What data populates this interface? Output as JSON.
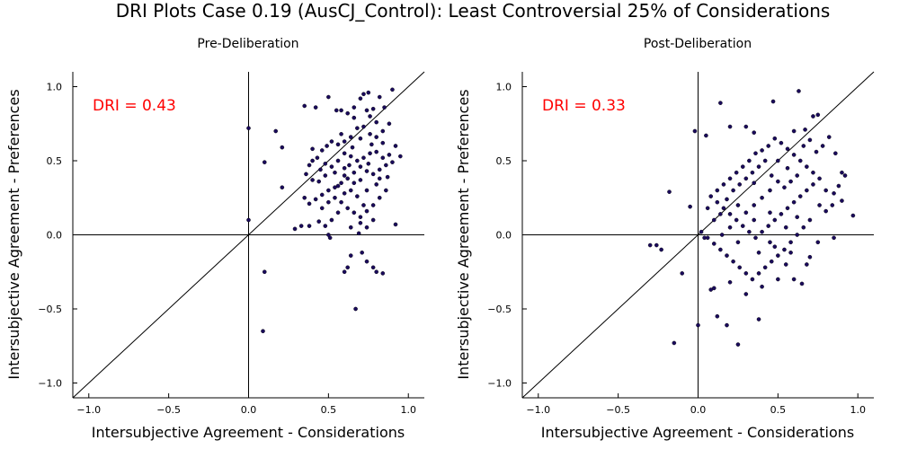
{
  "figure": {
    "title": "DRI Plots Case 0.19 (AusCJ_Control): Least Controversial 25% of Considerations"
  },
  "chart_data": [
    {
      "type": "scatter",
      "title": "Pre-Deliberation",
      "xlabel": "Intersubjective Agreement - Considerations",
      "ylabel": "Intersubjective Agreement - Preferences",
      "annotation": "DRI = 0.43",
      "annotation_color": "#ff0000",
      "xlim": [
        -1.1,
        1.1
      ],
      "ylim": [
        -1.1,
        1.1
      ],
      "xticks": [
        -1.0,
        -0.5,
        0.0,
        0.5,
        1.0
      ],
      "yticks": [
        -1.0,
        -0.5,
        0.0,
        0.5,
        1.0
      ],
      "xtick_labels": [
        "−1.0",
        "−0.5",
        "0.0",
        "0.5",
        "1.0"
      ],
      "ytick_labels": [
        "−1.0",
        "−0.5",
        "0.0",
        "0.5",
        "1.0"
      ],
      "grid": false,
      "reference_lines": [
        "x=0",
        "y=0",
        "y=x"
      ],
      "marker_color": "#1a0a5c",
      "points": [
        [
          0.0,
          0.72
        ],
        [
          0.0,
          0.1
        ],
        [
          0.1,
          0.49
        ],
        [
          0.17,
          0.7
        ],
        [
          0.21,
          0.59
        ],
        [
          0.21,
          0.32
        ],
        [
          0.29,
          0.04
        ],
        [
          0.1,
          -0.25
        ],
        [
          0.09,
          -0.65
        ],
        [
          0.35,
          0.87
        ],
        [
          0.42,
          0.86
        ],
        [
          0.5,
          0.93
        ],
        [
          0.55,
          0.84
        ],
        [
          0.58,
          0.84
        ],
        [
          0.62,
          0.82
        ],
        [
          0.66,
          0.79
        ],
        [
          0.7,
          0.92
        ],
        [
          0.72,
          0.95
        ],
        [
          0.75,
          0.96
        ],
        [
          0.78,
          0.85
        ],
        [
          0.82,
          0.93
        ],
        [
          0.85,
          0.86
        ],
        [
          0.9,
          0.98
        ],
        [
          0.88,
          0.75
        ],
        [
          0.84,
          0.7
        ],
        [
          0.8,
          0.66
        ],
        [
          0.76,
          0.68
        ],
        [
          0.72,
          0.73
        ],
        [
          0.68,
          0.72
        ],
        [
          0.64,
          0.66
        ],
        [
          0.6,
          0.63
        ],
        [
          0.56,
          0.61
        ],
        [
          0.52,
          0.63
        ],
        [
          0.49,
          0.6
        ],
        [
          0.46,
          0.57
        ],
        [
          0.43,
          0.52
        ],
        [
          0.4,
          0.5
        ],
        [
          0.38,
          0.47
        ],
        [
          0.36,
          0.41
        ],
        [
          0.4,
          0.37
        ],
        [
          0.44,
          0.36
        ],
        [
          0.48,
          0.4
        ],
        [
          0.52,
          0.46
        ],
        [
          0.56,
          0.5
        ],
        [
          0.6,
          0.55
        ],
        [
          0.64,
          0.53
        ],
        [
          0.68,
          0.5
        ],
        [
          0.72,
          0.52
        ],
        [
          0.76,
          0.55
        ],
        [
          0.8,
          0.56
        ],
        [
          0.84,
          0.52
        ],
        [
          0.88,
          0.54
        ],
        [
          0.92,
          0.6
        ],
        [
          0.95,
          0.53
        ],
        [
          0.9,
          0.49
        ],
        [
          0.86,
          0.47
        ],
        [
          0.82,
          0.44
        ],
        [
          0.78,
          0.41
        ],
        [
          0.74,
          0.43
        ],
        [
          0.7,
          0.46
        ],
        [
          0.66,
          0.42
        ],
        [
          0.62,
          0.38
        ],
        [
          0.58,
          0.35
        ],
        [
          0.54,
          0.32
        ],
        [
          0.5,
          0.3
        ],
        [
          0.46,
          0.27
        ],
        [
          0.42,
          0.24
        ],
        [
          0.38,
          0.21
        ],
        [
          0.35,
          0.25
        ],
        [
          0.46,
          0.18
        ],
        [
          0.5,
          0.22
        ],
        [
          0.54,
          0.25
        ],
        [
          0.58,
          0.22
        ],
        [
          0.62,
          0.18
        ],
        [
          0.66,
          0.15
        ],
        [
          0.7,
          0.12
        ],
        [
          0.74,
          0.16
        ],
        [
          0.78,
          0.2
        ],
        [
          0.82,
          0.25
        ],
        [
          0.86,
          0.3
        ],
        [
          0.8,
          0.34
        ],
        [
          0.74,
          0.3
        ],
        [
          0.68,
          0.26
        ],
        [
          0.64,
          0.3
        ],
        [
          0.6,
          0.28
        ],
        [
          0.56,
          0.15
        ],
        [
          0.52,
          0.1
        ],
        [
          0.48,
          0.06
        ],
        [
          0.44,
          0.09
        ],
        [
          0.64,
          0.05
        ],
        [
          0.7,
          0.08
        ],
        [
          0.74,
          0.05
        ],
        [
          0.78,
          0.1
        ],
        [
          0.72,
          0.2
        ],
        [
          0.66,
          0.35
        ],
        [
          0.7,
          0.37
        ],
        [
          0.6,
          0.45
        ],
        [
          0.54,
          0.42
        ],
        [
          0.48,
          0.48
        ],
        [
          0.58,
          0.68
        ],
        [
          0.7,
          0.65
        ],
        [
          0.76,
          0.8
        ],
        [
          0.8,
          0.76
        ],
        [
          0.66,
          0.86
        ],
        [
          0.74,
          0.84
        ],
        [
          0.5,
          0.0
        ],
        [
          0.51,
          -0.02
        ],
        [
          0.69,
          0.01
        ],
        [
          0.71,
          -0.12
        ],
        [
          0.64,
          -0.14
        ],
        [
          0.74,
          -0.18
        ],
        [
          0.78,
          -0.22
        ],
        [
          0.62,
          -0.22
        ],
        [
          0.6,
          -0.25
        ],
        [
          0.8,
          -0.25
        ],
        [
          0.84,
          -0.26
        ],
        [
          0.67,
          -0.5
        ],
        [
          0.92,
          0.07
        ],
        [
          0.33,
          0.06
        ],
        [
          0.38,
          0.06
        ],
        [
          0.56,
          0.33
        ],
        [
          0.65,
          0.59
        ],
        [
          0.77,
          0.61
        ],
        [
          0.84,
          0.62
        ],
        [
          0.45,
          0.44
        ],
        [
          0.4,
          0.58
        ],
        [
          0.6,
          0.4
        ],
        [
          0.63,
          0.47
        ],
        [
          0.75,
          0.48
        ],
        [
          0.87,
          0.39
        ],
        [
          0.82,
          0.38
        ]
      ]
    },
    {
      "type": "scatter",
      "title": "Post-Deliberation",
      "xlabel": "Intersubjective Agreement - Considerations",
      "ylabel": "Intersubjective Agreement - Preferences",
      "annotation": "DRI = 0.33",
      "annotation_color": "#ff0000",
      "xlim": [
        -1.1,
        1.1
      ],
      "ylim": [
        -1.1,
        1.1
      ],
      "xticks": [
        -1.0,
        -0.5,
        0.0,
        0.5,
        1.0
      ],
      "yticks": [
        -1.0,
        -0.5,
        0.0,
        0.5,
        1.0
      ],
      "xtick_labels": [
        "−1.0",
        "−0.5",
        "0.0",
        "0.5",
        "1.0"
      ],
      "ytick_labels": [
        "−1.0",
        "−0.5",
        "0.0",
        "0.5",
        "1.0"
      ],
      "grid": false,
      "reference_lines": [
        "x=0",
        "y=0",
        "y=x"
      ],
      "marker_color": "#1a0a5c",
      "points": [
        [
          -0.3,
          -0.07
        ],
        [
          -0.26,
          -0.07
        ],
        [
          -0.23,
          -0.1
        ],
        [
          -0.18,
          0.29
        ],
        [
          -0.1,
          -0.26
        ],
        [
          -0.15,
          -0.73
        ],
        [
          -0.05,
          0.19
        ],
        [
          -0.02,
          0.7
        ],
        [
          0.0,
          -0.61
        ],
        [
          0.02,
          0.02
        ],
        [
          0.04,
          -0.02
        ],
        [
          0.05,
          0.67
        ],
        [
          0.06,
          0.18
        ],
        [
          0.08,
          -0.37
        ],
        [
          0.1,
          -0.36
        ],
        [
          0.12,
          -0.55
        ],
        [
          0.14,
          0.89
        ],
        [
          0.18,
          -0.61
        ],
        [
          0.25,
          -0.74
        ],
        [
          0.2,
          0.73
        ],
        [
          0.3,
          0.73
        ],
        [
          0.35,
          0.69
        ],
        [
          0.38,
          -0.57
        ],
        [
          0.47,
          0.9
        ],
        [
          0.63,
          0.97
        ],
        [
          0.67,
          0.71
        ],
        [
          0.72,
          0.8
        ],
        [
          0.75,
          0.81
        ],
        [
          0.97,
          0.13
        ],
        [
          0.92,
          0.4
        ],
        [
          0.88,
          0.33
        ],
        [
          0.85,
          0.28
        ],
        [
          0.9,
          0.23
        ],
        [
          0.8,
          0.3
        ],
        [
          0.76,
          0.38
        ],
        [
          0.72,
          0.42
        ],
        [
          0.68,
          0.46
        ],
        [
          0.64,
          0.5
        ],
        [
          0.6,
          0.54
        ],
        [
          0.56,
          0.58
        ],
        [
          0.52,
          0.62
        ],
        [
          0.48,
          0.65
        ],
        [
          0.44,
          0.6
        ],
        [
          0.4,
          0.57
        ],
        [
          0.36,
          0.55
        ],
        [
          0.32,
          0.5
        ],
        [
          0.28,
          0.46
        ],
        [
          0.24,
          0.42
        ],
        [
          0.2,
          0.38
        ],
        [
          0.16,
          0.34
        ],
        [
          0.12,
          0.3
        ],
        [
          0.08,
          0.26
        ],
        [
          0.12,
          0.22
        ],
        [
          0.16,
          0.18
        ],
        [
          0.2,
          0.14
        ],
        [
          0.24,
          0.1
        ],
        [
          0.28,
          0.06
        ],
        [
          0.32,
          0.02
        ],
        [
          0.36,
          -0.02
        ],
        [
          0.4,
          0.02
        ],
        [
          0.44,
          0.06
        ],
        [
          0.48,
          0.1
        ],
        [
          0.52,
          0.14
        ],
        [
          0.56,
          0.18
        ],
        [
          0.6,
          0.22
        ],
        [
          0.64,
          0.26
        ],
        [
          0.68,
          0.3
        ],
        [
          0.72,
          0.34
        ],
        [
          0.76,
          0.2
        ],
        [
          0.8,
          0.16
        ],
        [
          0.84,
          0.2
        ],
        [
          0.7,
          0.1
        ],
        [
          0.66,
          0.05
        ],
        [
          0.62,
          0.0
        ],
        [
          0.58,
          -0.05
        ],
        [
          0.54,
          -0.1
        ],
        [
          0.5,
          -0.14
        ],
        [
          0.46,
          -0.18
        ],
        [
          0.42,
          -0.22
        ],
        [
          0.38,
          -0.26
        ],
        [
          0.34,
          -0.3
        ],
        [
          0.3,
          -0.26
        ],
        [
          0.26,
          -0.22
        ],
        [
          0.22,
          -0.18
        ],
        [
          0.18,
          -0.14
        ],
        [
          0.14,
          -0.1
        ],
        [
          0.1,
          -0.06
        ],
        [
          0.06,
          -0.02
        ],
        [
          0.1,
          0.1
        ],
        [
          0.14,
          0.14
        ],
        [
          0.18,
          0.24
        ],
        [
          0.22,
          0.3
        ],
        [
          0.26,
          0.34
        ],
        [
          0.3,
          0.38
        ],
        [
          0.34,
          0.42
        ],
        [
          0.38,
          0.46
        ],
        [
          0.42,
          0.5
        ],
        [
          0.46,
          0.4
        ],
        [
          0.5,
          0.36
        ],
        [
          0.54,
          0.32
        ],
        [
          0.58,
          0.36
        ],
        [
          0.62,
          0.4
        ],
        [
          0.66,
          0.6
        ],
        [
          0.7,
          0.64
        ],
        [
          0.74,
          0.56
        ],
        [
          0.78,
          0.6
        ],
        [
          0.82,
          0.66
        ],
        [
          0.86,
          0.55
        ],
        [
          0.9,
          0.42
        ],
        [
          0.6,
          0.7
        ],
        [
          0.56,
          0.45
        ],
        [
          0.5,
          0.5
        ],
        [
          0.45,
          0.3
        ],
        [
          0.4,
          0.25
        ],
        [
          0.35,
          0.2
        ],
        [
          0.3,
          0.15
        ],
        [
          0.25,
          0.2
        ],
        [
          0.2,
          0.05
        ],
        [
          0.15,
          0.0
        ],
        [
          0.25,
          -0.05
        ],
        [
          0.35,
          0.1
        ],
        [
          0.45,
          -0.05
        ],
        [
          0.55,
          -0.2
        ],
        [
          0.6,
          -0.3
        ],
        [
          0.65,
          -0.33
        ],
        [
          0.5,
          -0.3
        ],
        [
          0.4,
          -0.35
        ],
        [
          0.3,
          -0.4
        ],
        [
          0.2,
          -0.32
        ],
        [
          0.7,
          -0.15
        ],
        [
          0.75,
          -0.05
        ],
        [
          0.85,
          -0.02
        ],
        [
          0.55,
          0.05
        ],
        [
          0.45,
          0.15
        ],
        [
          0.35,
          0.35
        ],
        [
          0.62,
          0.12
        ],
        [
          0.68,
          -0.2
        ],
        [
          0.58,
          -0.12
        ],
        [
          0.48,
          -0.08
        ],
        [
          0.38,
          -0.12
        ]
      ]
    }
  ]
}
